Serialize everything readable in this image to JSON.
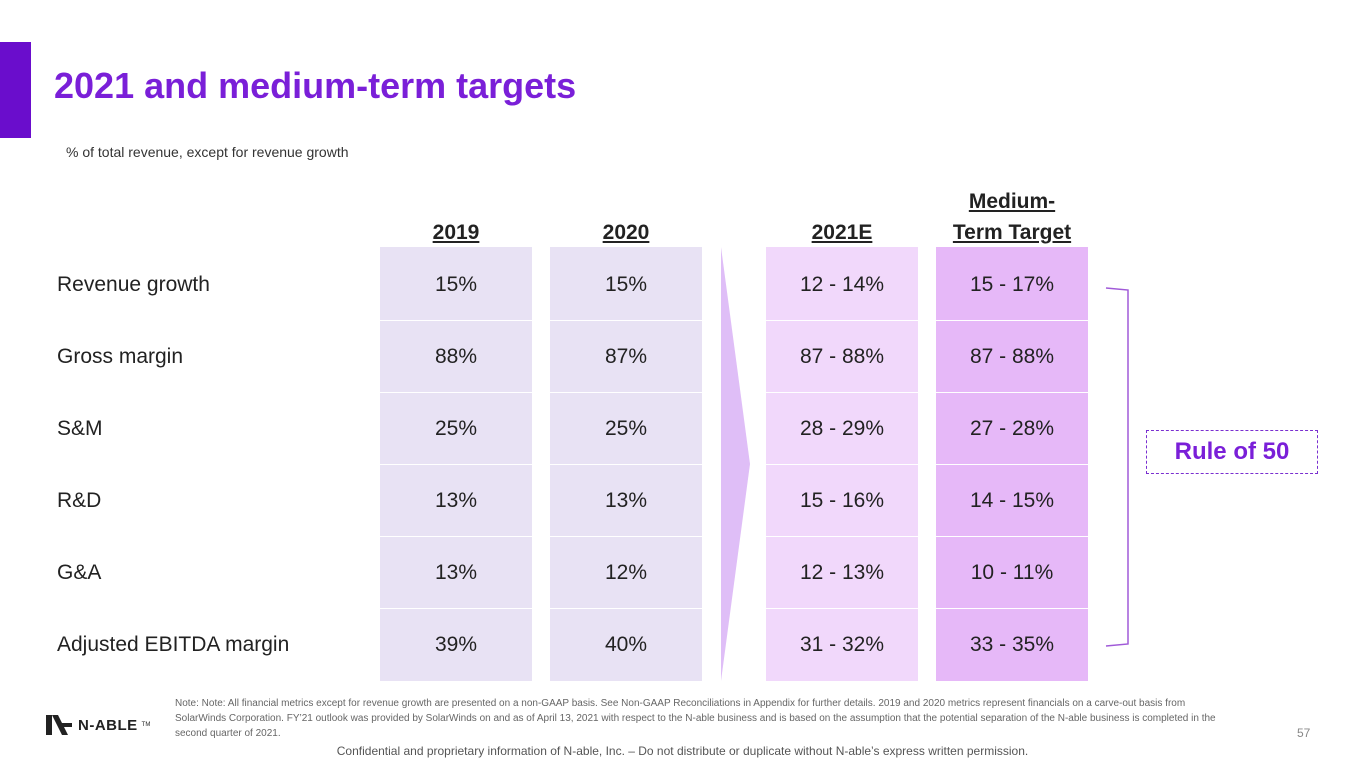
{
  "title": "2021 and medium-term targets",
  "subtitle": "% of total revenue, except for revenue growth",
  "columns": [
    "2019",
    "2020",
    "2021E",
    "Medium-",
    "Term Target"
  ],
  "rows": [
    {
      "label": "Revenue growth",
      "values": [
        "15%",
        "15%",
        "12 - 14%",
        "15 - 17%"
      ]
    },
    {
      "label": "Gross margin",
      "values": [
        "88%",
        "87%",
        "87 - 88%",
        "87 - 88%"
      ]
    },
    {
      "label": "S&M",
      "values": [
        "25%",
        "25%",
        "28 - 29%",
        "27 - 28%"
      ]
    },
    {
      "label": "R&D",
      "values": [
        "13%",
        "13%",
        "15 - 16%",
        "14 - 15%"
      ]
    },
    {
      "label": "G&A",
      "values": [
        "13%",
        "12%",
        "12 - 13%",
        "10 - 11%"
      ]
    },
    {
      "label": "Adjusted EBITDA margin",
      "values": [
        "39%",
        "40%",
        "31 - 32%",
        "33 - 35%"
      ]
    }
  ],
  "rule_label": "Rule of 50",
  "footnote": "Note: Note: All financial metrics except for revenue growth are presented on a non-GAAP basis. See Non-GAAP Reconciliations in Appendix for further details. 2019 and 2020 metrics represent financials on a carve-out basis from SolarWinds Corporation. FY’21 outlook was provided by SolarWinds on and as of April 13, 2021 with respect to the N-able business and is based on the assumption that the potential separation of the N-able business is completed in the second quarter of 2021.",
  "page_number": "57",
  "confidential": "Confidential and proprietary information of N-able, Inc. – Do not distribute or duplicate without N-able’s express written permission.",
  "logo": {
    "text": "N-ABLE",
    "tm": "TM"
  },
  "colors": {
    "accent": "#6a0dcc",
    "title": "#7a1fd8",
    "col_2019": "#e8e2f4",
    "col_2020": "#e8e2f4",
    "col_2021E": "#f1d8fb",
    "col_medium": "#e6b8f8",
    "arrow": "#dfbef7"
  }
}
